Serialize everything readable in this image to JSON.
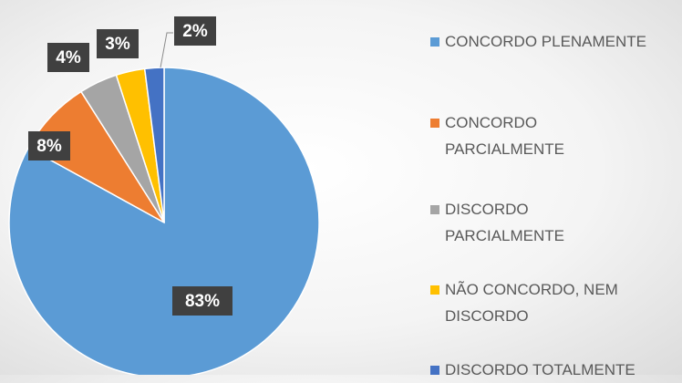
{
  "chart_data": {
    "type": "pie",
    "categories": [
      "CONCORDO PLENAMENTE",
      "CONCORDO PARCIALMENTE",
      "DISCORDO PARCIALMENTE",
      "NÃO CONCORDO, NEM DISCORDO",
      "DISCORDO TOTALMENTE"
    ],
    "values": [
      83,
      8,
      4,
      3,
      2
    ],
    "value_labels": [
      "83%",
      "8%",
      "4%",
      "3%",
      "2%"
    ],
    "colors": [
      "#5b9bd5",
      "#ed7d31",
      "#a5a5a5",
      "#ffc000",
      "#4472c4"
    ],
    "legend": "right"
  }
}
